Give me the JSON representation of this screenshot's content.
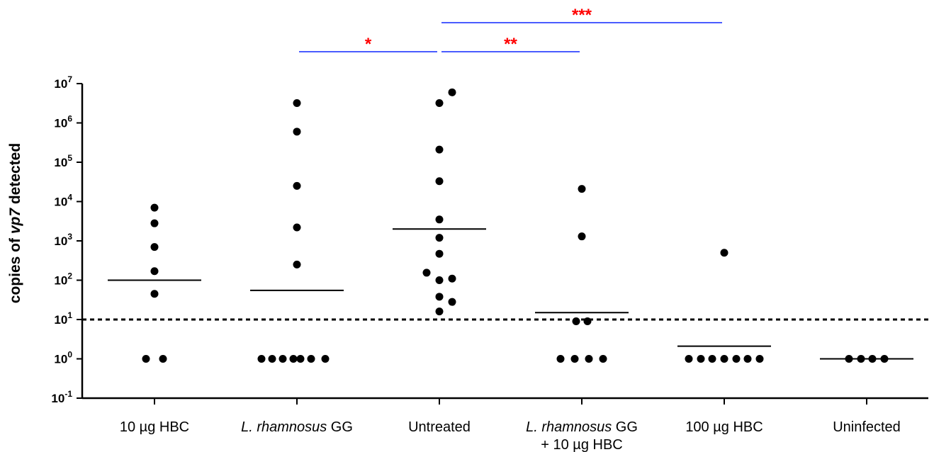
{
  "chart_data": {
    "type": "scatter",
    "y_scale": "log",
    "ylabel": {
      "before": "copies of ",
      "italic": "vp7",
      "after": " detected"
    },
    "ylim": [
      0.1,
      10000000
    ],
    "y_ticks": [
      {
        "base": "10",
        "exp": "7",
        "value": 10000000
      },
      {
        "base": "10",
        "exp": "6",
        "value": 1000000
      },
      {
        "base": "10",
        "exp": "5",
        "value": 100000
      },
      {
        "base": "10",
        "exp": "4",
        "value": 10000
      },
      {
        "base": "10",
        "exp": "3",
        "value": 1000
      },
      {
        "base": "10",
        "exp": "2",
        "value": 100
      },
      {
        "base": "10",
        "exp": "1",
        "value": 10
      },
      {
        "base": "10",
        "exp": "0",
        "value": 1
      },
      {
        "base": "10",
        "exp": "-1",
        "value": 0.1
      }
    ],
    "detection_limit": 10,
    "categories": [
      {
        "label_parts": [
          {
            "t": "10 µg HBC",
            "i": false
          }
        ],
        "label2": ""
      },
      {
        "label_parts": [
          {
            "t": "L. rhamnosus",
            "i": true
          },
          {
            "t": " GG",
            "i": false
          }
        ],
        "label2": ""
      },
      {
        "label_parts": [
          {
            "t": "Untreated",
            "i": false
          }
        ],
        "label2": ""
      },
      {
        "label_parts": [
          {
            "t": "L. rhamnosus",
            "i": true
          },
          {
            "t": " GG",
            "i": false
          }
        ],
        "label2": "+ 10 µg HBC"
      },
      {
        "label_parts": [
          {
            "t": "100 µg HBC",
            "i": false
          }
        ],
        "label2": ""
      },
      {
        "label_parts": [
          {
            "t": "Uninfected",
            "i": false
          }
        ],
        "label2": ""
      }
    ],
    "groups": [
      {
        "points": [
          {
            "offset": 0,
            "y": 7000
          },
          {
            "offset": 0,
            "y": 2800
          },
          {
            "offset": 0,
            "y": 700
          },
          {
            "offset": 0,
            "y": 170
          },
          {
            "offset": 0,
            "y": 45
          },
          {
            "offset": -0.12,
            "y": 1
          },
          {
            "offset": 0.12,
            "y": 1
          }
        ],
        "median": 100
      },
      {
        "points": [
          {
            "offset": 0,
            "y": 3200000
          },
          {
            "offset": 0,
            "y": 600000
          },
          {
            "offset": 0,
            "y": 25000
          },
          {
            "offset": 0,
            "y": 2200
          },
          {
            "offset": 0,
            "y": 250
          },
          {
            "offset": -0.5,
            "y": 1
          },
          {
            "offset": -0.35,
            "y": 1
          },
          {
            "offset": -0.2,
            "y": 1
          },
          {
            "offset": -0.05,
            "y": 1
          },
          {
            "offset": 0.05,
            "y": 1
          },
          {
            "offset": 0.2,
            "y": 1
          },
          {
            "offset": 0.4,
            "y": 1
          }
        ],
        "median": 55
      },
      {
        "points": [
          {
            "offset": 0,
            "y": 3200000
          },
          {
            "offset": 0.18,
            "y": 6000000
          },
          {
            "offset": 0,
            "y": 210000
          },
          {
            "offset": 0,
            "y": 33000
          },
          {
            "offset": 0,
            "y": 3500
          },
          {
            "offset": 0,
            "y": 1200
          },
          {
            "offset": 0,
            "y": 470
          },
          {
            "offset": -0.18,
            "y": 155
          },
          {
            "offset": 0,
            "y": 100
          },
          {
            "offset": 0.18,
            "y": 110
          },
          {
            "offset": 0,
            "y": 38
          },
          {
            "offset": 0.18,
            "y": 28
          },
          {
            "offset": 0,
            "y": 16
          }
        ],
        "median": 2000
      },
      {
        "points": [
          {
            "offset": 0,
            "y": 21000
          },
          {
            "offset": 0,
            "y": 1300
          },
          {
            "offset": -0.08,
            "y": 9
          },
          {
            "offset": 0.08,
            "y": 9
          },
          {
            "offset": -0.3,
            "y": 1
          },
          {
            "offset": -0.1,
            "y": 1
          },
          {
            "offset": 0.1,
            "y": 1
          },
          {
            "offset": 0.3,
            "y": 1
          }
        ],
        "median": 15
      },
      {
        "points": [
          {
            "offset": 0,
            "y": 500
          },
          {
            "offset": -0.5,
            "y": 1
          },
          {
            "offset": -0.33,
            "y": 1
          },
          {
            "offset": -0.17,
            "y": 1
          },
          {
            "offset": 0,
            "y": 1
          },
          {
            "offset": 0.17,
            "y": 1
          },
          {
            "offset": 0.33,
            "y": 1
          },
          {
            "offset": 0.5,
            "y": 1
          }
        ],
        "median": 2.1
      },
      {
        "points": [
          {
            "offset": -0.25,
            "y": 1
          },
          {
            "offset": -0.08,
            "y": 1
          },
          {
            "offset": 0.08,
            "y": 1
          },
          {
            "offset": 0.25,
            "y": 1
          }
        ],
        "median": 1
      }
    ],
    "significance": [
      {
        "from": 1,
        "to": 2,
        "label": "*",
        "level": 0
      },
      {
        "from": 2,
        "to": 3,
        "label": "**",
        "level": 0
      },
      {
        "from": 2,
        "to": 4,
        "label": "***",
        "level": 1
      }
    ],
    "colors": {
      "points": "#000000",
      "bracket": "#4a5cff",
      "stars": "#ff0000"
    }
  }
}
